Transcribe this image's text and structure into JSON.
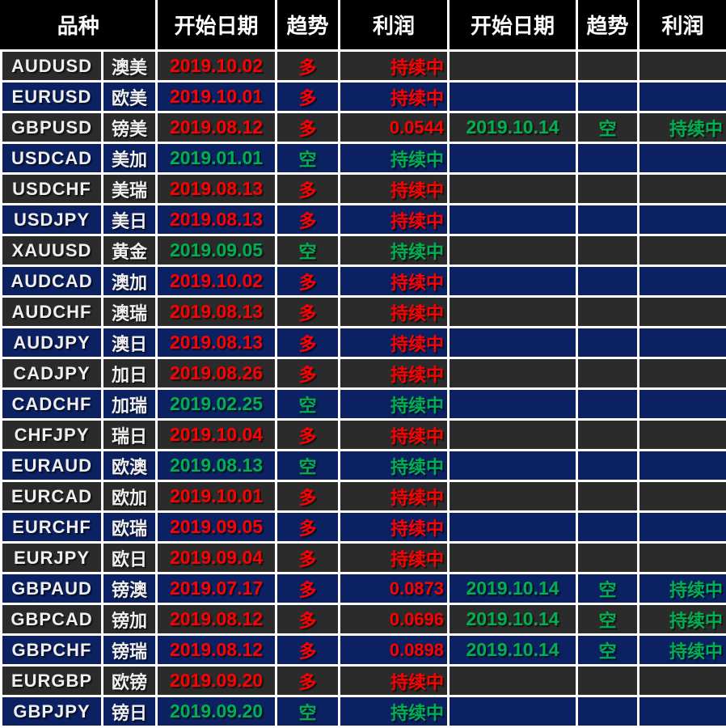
{
  "colors": {
    "long_red": "#ff0000",
    "short_green": "#00b050",
    "row_dark": "#2b2b2b",
    "row_navy": "#0b2161",
    "header_bg": "#000000",
    "grid_line": "#ffffff",
    "text_white": "#efefef"
  },
  "table": {
    "headers": {
      "symbol": "品种",
      "start_date_1": "开始日期",
      "trend_1": "趋势",
      "profit_1": "利润",
      "start_date_2": "开始日期",
      "trend_2": "趋势",
      "profit_2": "利润"
    },
    "rows": [
      {
        "symbol": "AUDUSD",
        "name_cn": "澳美",
        "trade1": {
          "start_date": "2019.10.02",
          "trend": "多",
          "profit": "持续中",
          "direction": "long"
        },
        "trade2": null
      },
      {
        "symbol": "EURUSD",
        "name_cn": "欧美",
        "trade1": {
          "start_date": "2019.10.01",
          "trend": "多",
          "profit": "持续中",
          "direction": "long"
        },
        "trade2": null
      },
      {
        "symbol": "GBPUSD",
        "name_cn": "镑美",
        "trade1": {
          "start_date": "2019.08.12",
          "trend": "多",
          "profit": "0.0544",
          "direction": "long"
        },
        "trade2": {
          "start_date": "2019.10.14",
          "trend": "空",
          "profit": "持续中",
          "direction": "short"
        }
      },
      {
        "symbol": "USDCAD",
        "name_cn": "美加",
        "trade1": {
          "start_date": "2019.01.01",
          "trend": "空",
          "profit": "持续中",
          "direction": "short"
        },
        "trade2": null
      },
      {
        "symbol": "USDCHF",
        "name_cn": "美瑞",
        "trade1": {
          "start_date": "2019.08.13",
          "trend": "多",
          "profit": "持续中",
          "direction": "long"
        },
        "trade2": null
      },
      {
        "symbol": "USDJPY",
        "name_cn": "美日",
        "trade1": {
          "start_date": "2019.08.13",
          "trend": "多",
          "profit": "持续中",
          "direction": "long"
        },
        "trade2": null
      },
      {
        "symbol": "XAUUSD",
        "name_cn": "黄金",
        "trade1": {
          "start_date": "2019.09.05",
          "trend": "空",
          "profit": "持续中",
          "direction": "short"
        },
        "trade2": null
      },
      {
        "symbol": "AUDCAD",
        "name_cn": "澳加",
        "trade1": {
          "start_date": "2019.10.02",
          "trend": "多",
          "profit": "持续中",
          "direction": "long"
        },
        "trade2": null
      },
      {
        "symbol": "AUDCHF",
        "name_cn": "澳瑞",
        "trade1": {
          "start_date": "2019.08.13",
          "trend": "多",
          "profit": "持续中",
          "direction": "long"
        },
        "trade2": null
      },
      {
        "symbol": "AUDJPY",
        "name_cn": "澳日",
        "trade1": {
          "start_date": "2019.08.13",
          "trend": "多",
          "profit": "持续中",
          "direction": "long"
        },
        "trade2": null
      },
      {
        "symbol": "CADJPY",
        "name_cn": "加日",
        "trade1": {
          "start_date": "2019.08.26",
          "trend": "多",
          "profit": "持续中",
          "direction": "long"
        },
        "trade2": null
      },
      {
        "symbol": "CADCHF",
        "name_cn": "加瑞",
        "trade1": {
          "start_date": "2019.02.25",
          "trend": "空",
          "profit": "持续中",
          "direction": "short"
        },
        "trade2": null
      },
      {
        "symbol": "CHFJPY",
        "name_cn": "瑞日",
        "trade1": {
          "start_date": "2019.10.04",
          "trend": "多",
          "profit": "持续中",
          "direction": "long"
        },
        "trade2": null
      },
      {
        "symbol": "EURAUD",
        "name_cn": "欧澳",
        "trade1": {
          "start_date": "2019.08.13",
          "trend": "空",
          "profit": "持续中",
          "direction": "short"
        },
        "trade2": null
      },
      {
        "symbol": "EURCAD",
        "name_cn": "欧加",
        "trade1": {
          "start_date": "2019.10.01",
          "trend": "多",
          "profit": "持续中",
          "direction": "long"
        },
        "trade2": null
      },
      {
        "symbol": "EURCHF",
        "name_cn": "欧瑞",
        "trade1": {
          "start_date": "2019.09.05",
          "trend": "多",
          "profit": "持续中",
          "direction": "long"
        },
        "trade2": null
      },
      {
        "symbol": "EURJPY",
        "name_cn": "欧日",
        "trade1": {
          "start_date": "2019.09.04",
          "trend": "多",
          "profit": "持续中",
          "direction": "long"
        },
        "trade2": null
      },
      {
        "symbol": "GBPAUD",
        "name_cn": "镑澳",
        "trade1": {
          "start_date": "2019.07.17",
          "trend": "多",
          "profit": "0.0873",
          "direction": "long"
        },
        "trade2": {
          "start_date": "2019.10.14",
          "trend": "空",
          "profit": "持续中",
          "direction": "short"
        }
      },
      {
        "symbol": "GBPCAD",
        "name_cn": "镑加",
        "trade1": {
          "start_date": "2019.08.12",
          "trend": "多",
          "profit": "0.0696",
          "direction": "long"
        },
        "trade2": {
          "start_date": "2019.10.14",
          "trend": "空",
          "profit": "持续中",
          "direction": "short"
        }
      },
      {
        "symbol": "GBPCHF",
        "name_cn": "镑瑞",
        "trade1": {
          "start_date": "2019.08.12",
          "trend": "多",
          "profit": "0.0898",
          "direction": "long"
        },
        "trade2": {
          "start_date": "2019.10.14",
          "trend": "空",
          "profit": "持续中",
          "direction": "short"
        }
      },
      {
        "symbol": "EURGBP",
        "name_cn": "欧镑",
        "trade1": {
          "start_date": "2019.09.20",
          "trend": "多",
          "profit": "持续中",
          "direction": "long"
        },
        "trade2": null
      },
      {
        "symbol": "GBPJPY",
        "name_cn": "镑日",
        "trade1": {
          "start_date": "2019.09.20",
          "trend": "空",
          "profit": "持续中",
          "direction": "short"
        },
        "trade2": null
      }
    ]
  }
}
